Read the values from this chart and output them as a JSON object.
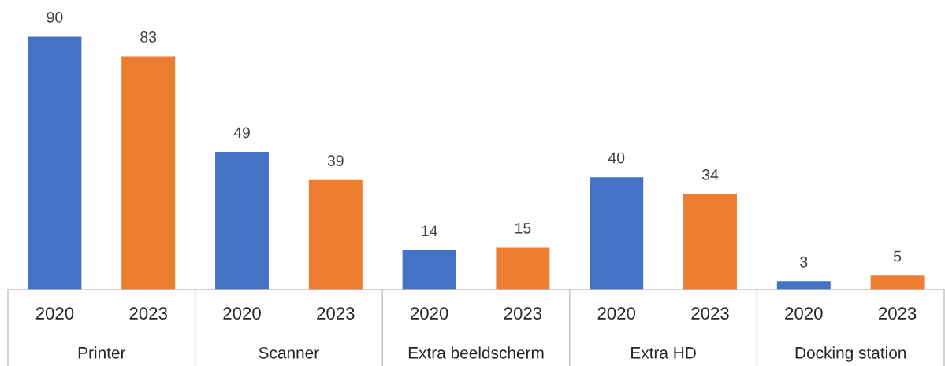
{
  "chart_data": {
    "type": "bar",
    "categories": [
      "Printer",
      "Scanner",
      "Extra beeldscherm",
      "Extra HD",
      "Docking station"
    ],
    "series": [
      {
        "name": "2020",
        "color": "#4472c4",
        "values": [
          90,
          49,
          14,
          40,
          3
        ]
      },
      {
        "name": "2023",
        "color": "#ed7d31",
        "values": [
          83,
          39,
          15,
          34,
          5
        ]
      }
    ],
    "data_labels": true
  }
}
